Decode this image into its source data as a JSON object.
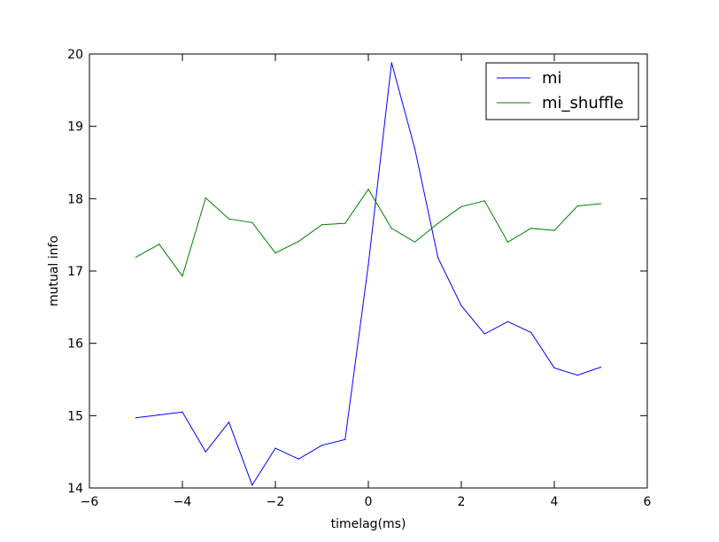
{
  "chart_data": {
    "type": "line",
    "title": "",
    "xlabel": "timelag(ms)",
    "ylabel": "mutual info",
    "xlim": [
      -6,
      6
    ],
    "ylim": [
      14,
      20
    ],
    "x_ticks": [
      -6,
      -4,
      -2,
      0,
      2,
      4,
      6
    ],
    "x_tick_labels": [
      "−6",
      "−4",
      "−2",
      "0",
      "2",
      "4",
      "6"
    ],
    "y_ticks": [
      14,
      15,
      16,
      17,
      18,
      19,
      20
    ],
    "y_tick_labels": [
      "14",
      "15",
      "16",
      "17",
      "18",
      "19",
      "20"
    ],
    "grid": false,
    "legend_position": "top-right",
    "x": [
      -5,
      -4.5,
      -4,
      -3.5,
      -3,
      -2.5,
      -2,
      -1.5,
      -1,
      -0.5,
      0,
      0.5,
      1,
      1.5,
      2,
      2.5,
      3,
      3.5,
      4,
      4.5,
      5
    ],
    "series": [
      {
        "name": "mi",
        "color": "#0000ff",
        "values": [
          14.97,
          15.01,
          15.05,
          14.5,
          14.91,
          14.04,
          14.55,
          14.4,
          14.59,
          14.67,
          17.09,
          19.88,
          18.69,
          17.18,
          16.52,
          16.13,
          16.3,
          16.15,
          15.66,
          15.56,
          15.67
        ]
      },
      {
        "name": "mi_shuffle",
        "color": "#008000",
        "values": [
          17.19,
          17.37,
          16.93,
          18.01,
          17.72,
          17.67,
          17.25,
          17.41,
          17.64,
          17.66,
          18.13,
          17.59,
          17.4,
          17.66,
          17.89,
          17.97,
          17.4,
          17.59,
          17.56,
          17.9,
          17.93
        ]
      }
    ]
  }
}
